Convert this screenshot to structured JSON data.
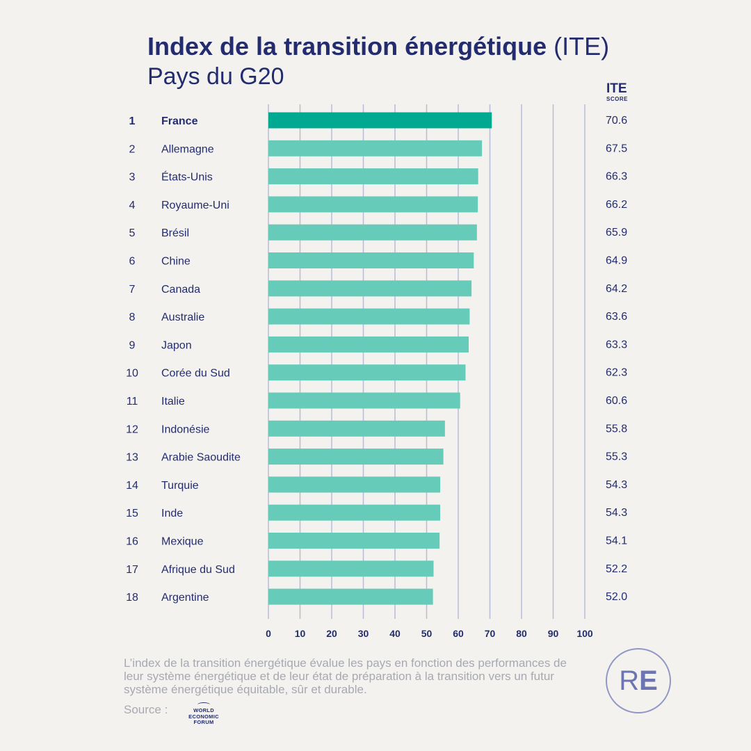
{
  "header": {
    "title_bold": "Index de la transition énergétique",
    "title_regular": "(ITE)",
    "subtitle": "Pays du G20",
    "score_label": "ITE",
    "score_sublabel": "SCORE"
  },
  "colors": {
    "highlight": "#00a98f",
    "bar": "#66cbb9",
    "gridline": "#b8bcd6",
    "text": "#232c6e"
  },
  "chart_data": {
    "type": "bar",
    "orientation": "horizontal",
    "ranks": [
      "1",
      "2",
      "3",
      "4",
      "5",
      "6",
      "7",
      "8",
      "9",
      "10",
      "11",
      "12",
      "13",
      "14",
      "15",
      "16",
      "17",
      "18"
    ],
    "categories": [
      "France",
      "Allemagne",
      "États-Unis",
      "Royaume-Uni",
      "Brésil",
      "Chine",
      "Canada",
      "Australie",
      "Japon",
      "Corée du Sud",
      "Italie",
      "Indonésie",
      "Arabie Saoudite",
      "Turquie",
      "Inde",
      "Mexique",
      "Afrique du Sud",
      "Argentine"
    ],
    "values": [
      70.6,
      67.5,
      66.3,
      66.2,
      65.9,
      64.9,
      64.2,
      63.6,
      63.3,
      62.3,
      60.6,
      55.8,
      55.3,
      54.3,
      54.3,
      54.1,
      52.2,
      52.0
    ],
    "value_labels": [
      "70.6",
      "67.5",
      "66.3",
      "66.2",
      "65.9",
      "64.9",
      "64.2",
      "63.6",
      "63.3",
      "62.3",
      "60.6",
      "55.8",
      "55.3",
      "54.3",
      "54.3",
      "54.1",
      "52.2",
      "52.0"
    ],
    "highlighted_index": 0,
    "xlim": [
      0,
      100
    ],
    "xticks": [
      0,
      10,
      20,
      30,
      40,
      50,
      60,
      70,
      80,
      90,
      100
    ],
    "grid": true,
    "xlabel": "",
    "ylabel": ""
  },
  "footer": {
    "note": "L’index de la transition énergétique évalue les pays en fonction des performances de leur système énergétique et de leur état de préparation à la transition vers un futur système énergétique équitable, sûr et durable.",
    "source_label": "Source :",
    "source_logo_lines": [
      "WORLD",
      "ECONOMIC",
      "FORUM"
    ],
    "brand_logo_r": "R",
    "brand_logo_e": "E"
  }
}
